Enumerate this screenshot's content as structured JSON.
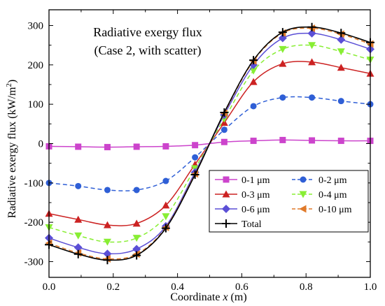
{
  "chart_data": {
    "type": "line",
    "title_lines": [
      "Radiative exergy flux",
      "(Case 2, with scatter)"
    ],
    "xlabel_prefix": "Coordinate ",
    "xlabel_var": "x",
    "xlabel_suffix": " (m)",
    "ylabel_main": "Radiative exergy flux (kW/m",
    "ylabel_sup": "2",
    "ylabel_end": ")",
    "xlim": [
      0,
      1
    ],
    "ylim": [
      -340,
      340
    ],
    "x_ticks": [
      0.0,
      0.2,
      0.4,
      0.6,
      0.8,
      1.0
    ],
    "x_tick_labels": [
      "0.0",
      "0.2",
      "0.4",
      "0.6",
      "0.8",
      "1.0"
    ],
    "y_ticks": [
      -300,
      -200,
      -100,
      0,
      100,
      200,
      300
    ],
    "y_tick_labels": [
      "-300",
      "-200",
      "-100",
      "0",
      "100",
      "200",
      "300"
    ],
    "grid": false,
    "legend_placement": "bottom-right",
    "x": [
      0.0,
      0.0909,
      0.1818,
      0.2727,
      0.3636,
      0.4545,
      0.5455,
      0.6364,
      0.7273,
      0.8182,
      0.9091,
      1.0
    ],
    "series": [
      {
        "name": "0-1 μm",
        "color": "#cc44cc",
        "marker": "square",
        "dash": "solid",
        "values": [
          -7,
          -8,
          -9,
          -8,
          -7,
          -4,
          4,
          7,
          9,
          8,
          7,
          7
        ]
      },
      {
        "name": "0-2 μm",
        "color": "#2f5fd6",
        "marker": "circle",
        "dash": "dashed",
        "values": [
          -100,
          -108,
          -118,
          -118,
          -95,
          -35,
          35,
          95,
          117,
          117,
          108,
          100
        ]
      },
      {
        "name": "0-3 μm",
        "color": "#cc2222",
        "marker": "triangle-up",
        "dash": "solid",
        "values": [
          -178,
          -193,
          -207,
          -203,
          -157,
          -53,
          53,
          157,
          203,
          207,
          193,
          178
        ]
      },
      {
        "name": "0-4 μm",
        "color": "#88ee33",
        "marker": "triangle-down",
        "dash": "dashed",
        "values": [
          -213,
          -234,
          -250,
          -240,
          -185,
          -63,
          63,
          185,
          240,
          250,
          234,
          213
        ]
      },
      {
        "name": "0-6 μm",
        "color": "#5b4fd6",
        "marker": "diamond",
        "dash": "solid",
        "values": [
          -240,
          -264,
          -280,
          -268,
          -210,
          -73,
          73,
          200,
          268,
          280,
          264,
          240
        ]
      },
      {
        "name": "0-10 μm",
        "color": "#e07a2a",
        "marker": "triangle-left",
        "dash": "dashed",
        "values": [
          -253,
          -278,
          -293,
          -281,
          -213,
          -77,
          77,
          210,
          281,
          293,
          278,
          253
        ]
      },
      {
        "name": "Total",
        "color": "#000000",
        "marker": "plus",
        "dash": "solid",
        "values": [
          -257,
          -281,
          -296,
          -284,
          -215,
          -79,
          79,
          212,
          283,
          296,
          281,
          257
        ]
      }
    ]
  }
}
